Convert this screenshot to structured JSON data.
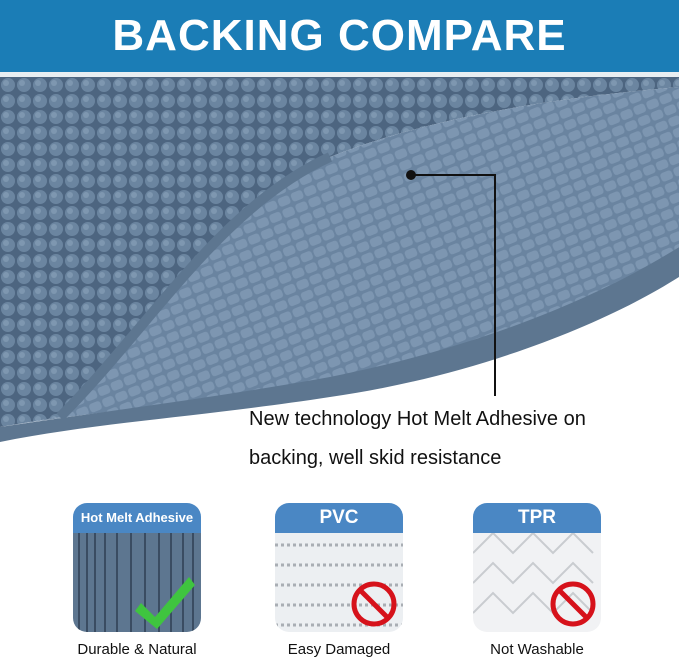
{
  "header": {
    "title": "BACKING COMPARE"
  },
  "description": {
    "line1": "New technology Hot Melt Adhesive on",
    "line2": "backing, well skid resistance"
  },
  "comparisons": [
    {
      "label": "Hot Melt Adhesive",
      "caption": "Durable & Natural",
      "icon": "check-icon",
      "verdict": "good"
    },
    {
      "label": "PVC",
      "caption": "Easy Damaged",
      "icon": "prohibited-icon",
      "verdict": "bad"
    },
    {
      "label": "TPR",
      "caption": "Not Washable",
      "icon": "prohibited-icon",
      "verdict": "bad"
    }
  ],
  "colors": {
    "banner": "#1b7db6",
    "card_header": "#4a87c4",
    "mat": "#5d7690",
    "check": "#3fc43f",
    "prohibited": "#d6121b"
  }
}
